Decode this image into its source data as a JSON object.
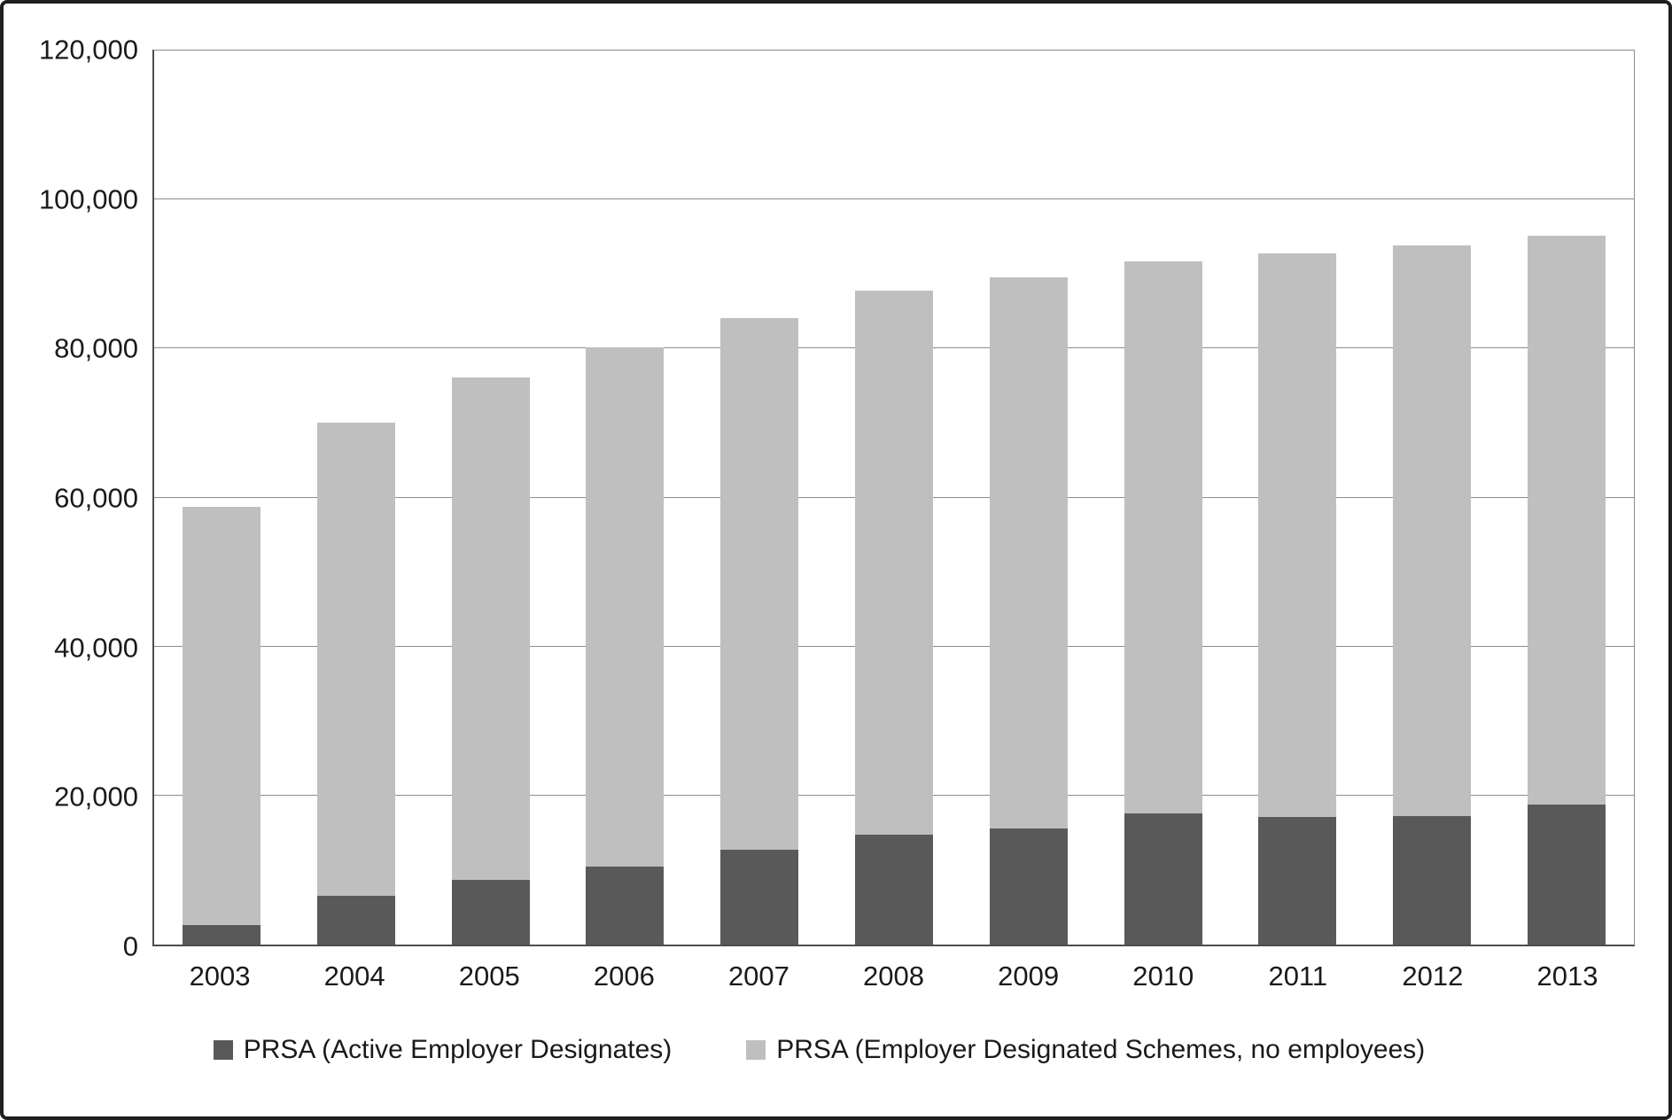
{
  "chart_data": {
    "type": "bar",
    "stacked": true,
    "title": "",
    "xlabel": "",
    "ylabel": "",
    "categories": [
      "2003",
      "2004",
      "2005",
      "2006",
      "2007",
      "2008",
      "2009",
      "2010",
      "2011",
      "2012",
      "2013"
    ],
    "series": [
      {
        "name": "PRSA (Active Employer Designates)",
        "color": "#595959",
        "values": [
          2600,
          6500,
          8700,
          10500,
          12700,
          14700,
          15600,
          17600,
          17100,
          17300,
          18800
        ]
      },
      {
        "name": "PRSA (Employer Designated Schemes, no employees)",
        "color": "#bfbfbf",
        "values": [
          56200,
          63500,
          67400,
          69700,
          71400,
          73100,
          74000,
          74100,
          75700,
          76500,
          76300
        ]
      }
    ],
    "totals": [
      58800,
      70000,
      76100,
      80200,
      84100,
      87800,
      89600,
      91700,
      92800,
      93800,
      95100
    ],
    "ylim": [
      0,
      120000
    ],
    "ytick_step": 20000,
    "ytick_labels": [
      "0",
      "20,000",
      "40,000",
      "60,000",
      "80,000",
      "100,000",
      "120,000"
    ],
    "grid": true,
    "legend_position": "bottom",
    "colors": {
      "axis_line": "#4d4d4d",
      "gridline": "#8c8c8c",
      "background": "#ffffff",
      "frame_border": "#1f1f1f"
    }
  }
}
